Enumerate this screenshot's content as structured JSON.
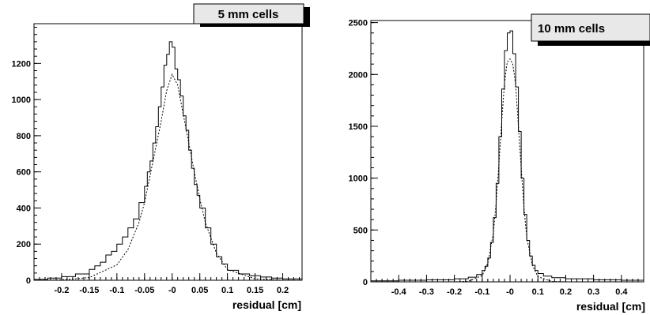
{
  "chart_data": [
    {
      "type": "line",
      "title": "5 mm cells",
      "xlabel": "residual [cm]",
      "ylabel": "",
      "xlim": [
        -0.25,
        0.235
      ],
      "ylim": [
        0,
        1420
      ],
      "x_ticks": [
        -0.2,
        -0.15,
        -0.1,
        -0.05,
        0,
        0.05,
        0.1,
        0.15,
        0.2
      ],
      "x_tick_labels": [
        "-0.2",
        "-0.15",
        "-0.1",
        "-0.05",
        "-0",
        "0.05",
        "0.1",
        "0.15",
        "0.2"
      ],
      "y_ticks": [
        0,
        200,
        400,
        600,
        800,
        1000,
        1200
      ],
      "y_tick_labels": [
        "0",
        "200",
        "400",
        "600",
        "800",
        "1000",
        "1200"
      ],
      "grid": false,
      "series": [
        {
          "style": "histogram-step",
          "x": [
            -0.25,
            -0.225,
            -0.2,
            -0.175,
            -0.15,
            -0.14,
            -0.13,
            -0.12,
            -0.11,
            -0.1,
            -0.09,
            -0.08,
            -0.07,
            -0.06,
            -0.05,
            -0.045,
            -0.04,
            -0.035,
            -0.03,
            -0.025,
            -0.02,
            -0.015,
            -0.01,
            -0.005,
            0,
            0.005,
            0.01,
            0.015,
            0.02,
            0.025,
            0.03,
            0.035,
            0.04,
            0.045,
            0.05,
            0.06,
            0.07,
            0.08,
            0.09,
            0.1,
            0.12,
            0.14,
            0.16,
            0.18,
            0.2,
            0.235
          ],
          "y": [
            5,
            12,
            20,
            35,
            60,
            80,
            100,
            140,
            160,
            200,
            240,
            290,
            340,
            430,
            520,
            600,
            660,
            760,
            850,
            960,
            1070,
            1190,
            1250,
            1320,
            1290,
            1170,
            1110,
            1020,
            910,
            830,
            720,
            620,
            530,
            470,
            400,
            290,
            200,
            130,
            90,
            55,
            35,
            25,
            18,
            12,
            8,
            5
          ]
        },
        {
          "style": "fit-dotted",
          "x": [
            -0.25,
            -0.2,
            -0.15,
            -0.1,
            -0.08,
            -0.06,
            -0.05,
            -0.04,
            -0.03,
            -0.02,
            -0.01,
            0,
            0.01,
            0.02,
            0.03,
            0.04,
            0.05,
            0.06,
            0.08,
            0.1,
            0.15,
            0.2,
            0.235
          ],
          "y": [
            0,
            2,
            15,
            85,
            170,
            320,
            430,
            580,
            730,
            880,
            1050,
            1140,
            1080,
            920,
            760,
            600,
            450,
            320,
            150,
            60,
            8,
            1,
            0
          ]
        }
      ]
    },
    {
      "type": "line",
      "title": "10 mm cells",
      "xlabel": "residual [cm]",
      "ylabel": "",
      "xlim": [
        -0.5,
        0.48
      ],
      "ylim": [
        0,
        2520
      ],
      "x_ticks": [
        -0.4,
        -0.3,
        -0.2,
        -0.1,
        0,
        0.1,
        0.2,
        0.3,
        0.4
      ],
      "x_tick_labels": [
        "-0.4",
        "-0.3",
        "-0.2",
        "-0.1",
        "-0",
        "0.1",
        "0.2",
        "0.3",
        "0.4"
      ],
      "y_ticks": [
        0,
        500,
        1000,
        1500,
        2000,
        2500
      ],
      "y_tick_labels": [
        "0",
        "500",
        "1000",
        "1500",
        "2000",
        "2500"
      ],
      "grid": false,
      "series": [
        {
          "style": "histogram-step",
          "x": [
            -0.5,
            -0.4,
            -0.3,
            -0.2,
            -0.15,
            -0.12,
            -0.1,
            -0.09,
            -0.08,
            -0.07,
            -0.06,
            -0.05,
            -0.04,
            -0.03,
            -0.02,
            -0.01,
            0,
            0.01,
            0.02,
            0.03,
            0.04,
            0.05,
            0.06,
            0.07,
            0.08,
            0.09,
            0.1,
            0.12,
            0.15,
            0.2,
            0.3,
            0.4,
            0.48
          ],
          "y": [
            10,
            15,
            20,
            30,
            45,
            70,
            110,
            150,
            230,
            380,
            620,
            950,
            1400,
            1860,
            2230,
            2400,
            2420,
            2200,
            1880,
            1450,
            1000,
            650,
            400,
            250,
            160,
            110,
            80,
            55,
            40,
            30,
            20,
            15,
            10
          ]
        },
        {
          "style": "fit-dotted",
          "x": [
            -0.5,
            -0.2,
            -0.15,
            -0.1,
            -0.08,
            -0.06,
            -0.05,
            -0.04,
            -0.03,
            -0.02,
            -0.01,
            0,
            0.01,
            0.02,
            0.03,
            0.04,
            0.05,
            0.06,
            0.08,
            0.1,
            0.15,
            0.2,
            0.48
          ],
          "y": [
            0,
            0,
            5,
            60,
            180,
            470,
            760,
            1130,
            1550,
            1920,
            2120,
            2150,
            2100,
            1900,
            1500,
            1100,
            720,
            430,
            160,
            50,
            4,
            0,
            0
          ]
        }
      ]
    }
  ]
}
